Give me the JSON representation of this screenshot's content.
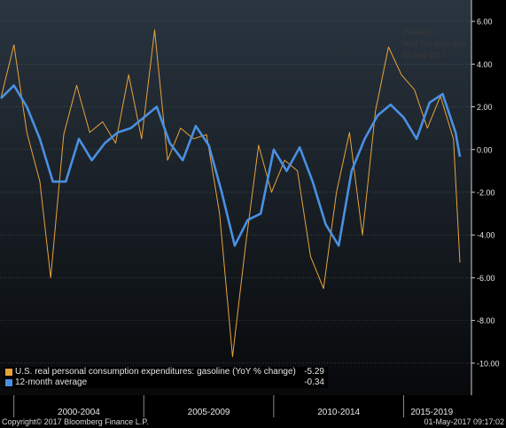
{
  "watermark": [
    "Posted on",
    "WSJ The Daily Shot",
    "02-May-2017"
  ],
  "footer": {
    "copyright": "Copyright© 2017 Bloomberg Finance L.P.",
    "timestamp": "01-May-2017 09:17:02"
  },
  "colors": {
    "monthly": "#e8a33c",
    "average": "#4a90e2",
    "background_top": "#2a3540",
    "background_bottom": "#07090b"
  },
  "chart_data": {
    "type": "line",
    "x_categories": [
      "2000-2004",
      "2005-2009",
      "2010-2014",
      "2015-2019"
    ],
    "x_range": [
      "1999-07",
      "2017-03"
    ],
    "ylim": [
      -11.5,
      7
    ],
    "yticks": [
      "6.00",
      "4.00",
      "2.00",
      "0.00",
      "-2.00",
      "-4.00",
      "-6.00",
      "-8.00",
      "-10.00"
    ],
    "ytick_values": [
      6,
      4,
      2,
      0,
      -2,
      -4,
      -6,
      -8,
      -10
    ],
    "grid": true,
    "legend_position": "bottom-left",
    "series": [
      {
        "name": "U.S. real personal consumption expenditures: gasoline (YoY % change)",
        "last_value": "-5.29",
        "color": "#e8a33c",
        "points": [
          [
            "1999-07",
            2.4
          ],
          [
            "2000-01",
            4.9
          ],
          [
            "2000-07",
            0.8
          ],
          [
            "2001-01",
            -1.5
          ],
          [
            "2001-06",
            -6.0
          ],
          [
            "2001-12",
            0.7
          ],
          [
            "2002-06",
            3.0
          ],
          [
            "2002-12",
            0.8
          ],
          [
            "2003-06",
            1.3
          ],
          [
            "2003-12",
            0.3
          ],
          [
            "2004-06",
            3.5
          ],
          [
            "2004-12",
            0.5
          ],
          [
            "2005-06",
            5.6
          ],
          [
            "2005-12",
            -0.5
          ],
          [
            "2006-06",
            1.0
          ],
          [
            "2006-12",
            0.5
          ],
          [
            "2007-06",
            0.7
          ],
          [
            "2007-12",
            -3.0
          ],
          [
            "2008-06",
            -9.7
          ],
          [
            "2008-12",
            -4.5
          ],
          [
            "2009-06",
            0.2
          ],
          [
            "2009-12",
            -2.0
          ],
          [
            "2010-06",
            -0.5
          ],
          [
            "2010-12",
            -1.0
          ],
          [
            "2011-06",
            -5.0
          ],
          [
            "2011-12",
            -6.5
          ],
          [
            "2012-06",
            -2.0
          ],
          [
            "2012-12",
            0.8
          ],
          [
            "2013-06",
            -4.0
          ],
          [
            "2013-12",
            1.8
          ],
          [
            "2014-06",
            4.8
          ],
          [
            "2014-12",
            3.5
          ],
          [
            "2015-06",
            2.8
          ],
          [
            "2015-12",
            1.0
          ],
          [
            "2016-06",
            2.5
          ],
          [
            "2016-12",
            0.5
          ],
          [
            "2017-03",
            -5.29
          ]
        ]
      },
      {
        "name": "12-month average",
        "last_value": "-0.34",
        "color": "#4a90e2",
        "points": [
          [
            "1999-07",
            2.4
          ],
          [
            "2000-01",
            3.0
          ],
          [
            "2000-07",
            2.0
          ],
          [
            "2001-01",
            0.5
          ],
          [
            "2001-07",
            -1.5
          ],
          [
            "2002-01",
            -1.5
          ],
          [
            "2002-07",
            0.5
          ],
          [
            "2003-01",
            -0.5
          ],
          [
            "2003-07",
            0.3
          ],
          [
            "2004-01",
            0.8
          ],
          [
            "2004-07",
            1.0
          ],
          [
            "2005-01",
            1.5
          ],
          [
            "2005-07",
            2.0
          ],
          [
            "2006-01",
            0.3
          ],
          [
            "2006-07",
            -0.5
          ],
          [
            "2007-01",
            1.1
          ],
          [
            "2007-07",
            0.2
          ],
          [
            "2008-01",
            -2.0
          ],
          [
            "2008-07",
            -4.5
          ],
          [
            "2009-01",
            -3.3
          ],
          [
            "2009-07",
            -3.0
          ],
          [
            "2010-01",
            0.0
          ],
          [
            "2010-07",
            -1.0
          ],
          [
            "2011-01",
            0.1
          ],
          [
            "2011-07",
            -1.5
          ],
          [
            "2012-01",
            -3.5
          ],
          [
            "2012-07",
            -4.5
          ],
          [
            "2013-01",
            -1.0
          ],
          [
            "2013-07",
            0.5
          ],
          [
            "2014-01",
            1.6
          ],
          [
            "2014-07",
            2.1
          ],
          [
            "2015-01",
            1.5
          ],
          [
            "2015-07",
            0.5
          ],
          [
            "2016-01",
            2.2
          ],
          [
            "2016-07",
            2.6
          ],
          [
            "2017-01",
            0.8
          ],
          [
            "2017-03",
            -0.34
          ]
        ]
      }
    ]
  }
}
